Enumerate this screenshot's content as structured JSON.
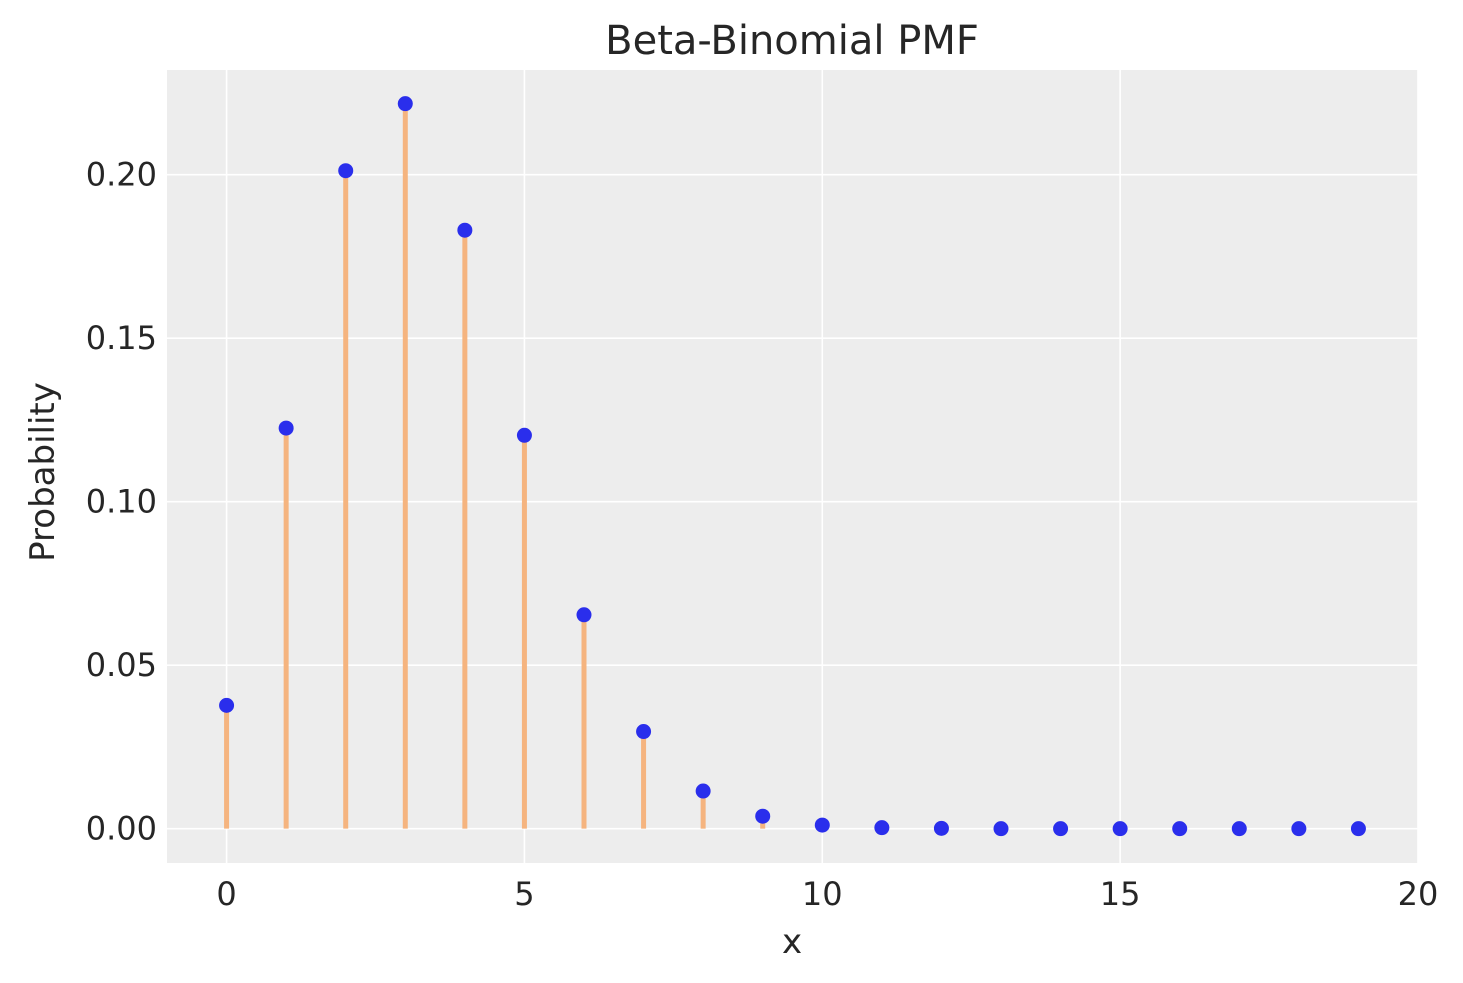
{
  "chart_data": {
    "type": "scatter",
    "title": "Beta-Binomial PMF",
    "xlabel": "x",
    "ylabel": "Probability",
    "xlim": [
      -1,
      20
    ],
    "ylim": [
      -0.0105,
      0.232
    ],
    "xticks": [
      0,
      5,
      10,
      15,
      20
    ],
    "xtick_labels": [
      "0",
      "5",
      "10",
      "15",
      "20"
    ],
    "yticks": [
      0.0,
      0.05,
      0.1,
      0.15,
      0.2
    ],
    "ytick_labels": [
      "0.00",
      "0.05",
      "0.10",
      "0.15",
      "0.20"
    ],
    "grid": true,
    "x": [
      0,
      1,
      2,
      3,
      4,
      5,
      6,
      7,
      8,
      9,
      10,
      11,
      12,
      13,
      14,
      15,
      16,
      17,
      18,
      19
    ],
    "y": [
      0.0377,
      0.1225,
      0.2012,
      0.2217,
      0.183,
      0.1203,
      0.0654,
      0.0297,
      0.0115,
      0.0038,
      0.0011,
      0.0003,
      0.0001,
      0.0,
      0.0,
      0.0,
      0.0,
      0.0,
      0.0,
      0.0
    ],
    "stems_shown_for": [
      0,
      1,
      2,
      3,
      4,
      5,
      6,
      7,
      8,
      9,
      10
    ],
    "colors": {
      "points": "#2a2eec",
      "stems": "#f5b47f",
      "plot_background": "#ededed",
      "grid": "#ffffff"
    }
  }
}
